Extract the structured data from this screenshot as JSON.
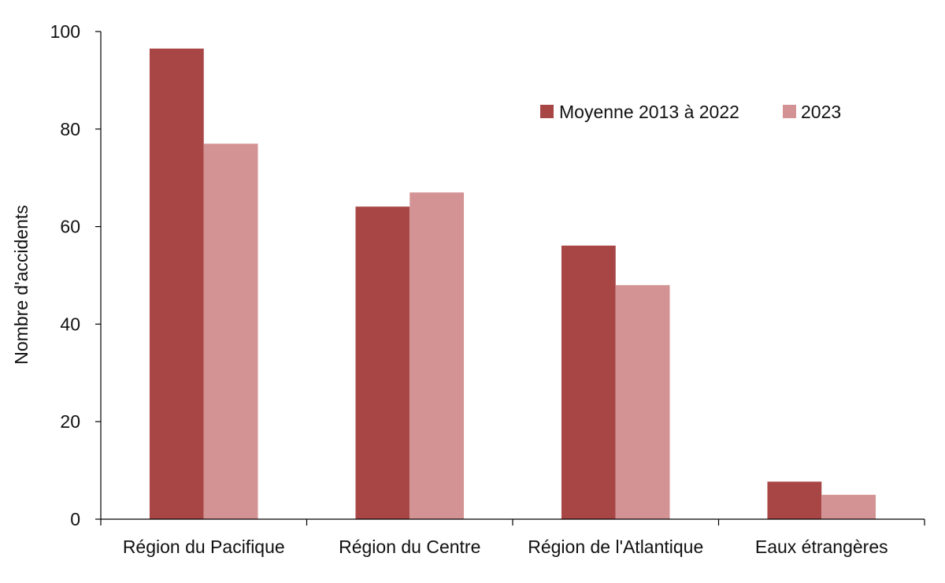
{
  "chart_data": {
    "type": "bar",
    "title": "",
    "xlabel": "",
    "ylabel": "Nombre d'accidents",
    "ylim": [
      0,
      100
    ],
    "yticks": [
      0,
      20,
      40,
      60,
      80,
      100
    ],
    "categories": [
      "Région du Pacifique",
      "Région du Centre",
      "Région de l'Atlantique",
      "Eaux étrangères"
    ],
    "series": [
      {
        "name": "Moyenne 2013 à 2022",
        "color": "#a84646",
        "values": [
          96.5,
          64.1,
          56.1,
          7.7
        ]
      },
      {
        "name": "2023",
        "color": "#d39394",
        "values": [
          77,
          67,
          48,
          5
        ]
      }
    ],
    "legend_position": "top-right",
    "grid": false
  }
}
